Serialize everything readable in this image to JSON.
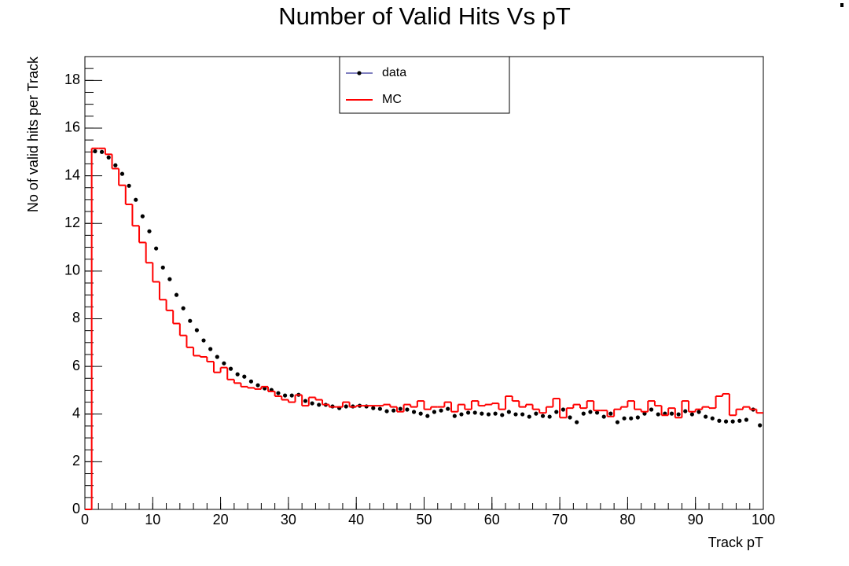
{
  "chart_data": {
    "type": "histogram",
    "title": "Number of Valid Hits Vs pT",
    "x_label": "Track pT",
    "y_label": "No of valid hits per Track",
    "bins": [
      0,
      1,
      2,
      3,
      4,
      5,
      6,
      7,
      8,
      9,
      10,
      11,
      12,
      13,
      14,
      15,
      16,
      17,
      18,
      19,
      20,
      21,
      22,
      23,
      24,
      25,
      26,
      27,
      28,
      29,
      30,
      31,
      32,
      33,
      34,
      35,
      36,
      37,
      38,
      39,
      40,
      41,
      42,
      43,
      44,
      45,
      46,
      47,
      48,
      49,
      50,
      51,
      52,
      53,
      54,
      55,
      56,
      57,
      58,
      59,
      60,
      61,
      62,
      63,
      64,
      65,
      66,
      67,
      68,
      69,
      70,
      71,
      72,
      73,
      74,
      75,
      76,
      77,
      78,
      79,
      80,
      81,
      82,
      83,
      84,
      85,
      86,
      87,
      88,
      89,
      90,
      91,
      92,
      93,
      94,
      95,
      96,
      97,
      98,
      99,
      100
    ],
    "series": [
      {
        "name": "data",
        "style": "points",
        "color": "#000000",
        "values": [
          null,
          15.03,
          15.0,
          14.77,
          14.44,
          14.08,
          13.58,
          12.99,
          12.3,
          11.67,
          10.95,
          10.15,
          9.66,
          9.0,
          8.44,
          7.91,
          7.52,
          7.09,
          6.73,
          6.4,
          6.13,
          5.9,
          5.67,
          5.57,
          5.37,
          5.21,
          5.08,
          5.01,
          4.88,
          4.78,
          4.78,
          4.81,
          4.55,
          4.45,
          4.39,
          4.39,
          4.32,
          4.25,
          4.32,
          4.32,
          4.35,
          4.32,
          4.25,
          4.22,
          4.12,
          4.15,
          4.22,
          4.19,
          4.09,
          4.02,
          3.92,
          4.09,
          4.15,
          4.22,
          3.92,
          3.99,
          4.06,
          4.06,
          4.02,
          3.99,
          4.02,
          3.96,
          4.09,
          3.99,
          3.99,
          3.89,
          4.02,
          3.92,
          3.89,
          4.09,
          4.19,
          3.86,
          3.66,
          4.02,
          4.09,
          4.06,
          3.89,
          4.02,
          3.66,
          3.82,
          3.82,
          3.86,
          4.02,
          4.19,
          3.99,
          4.02,
          4.02,
          3.99,
          4.12,
          3.99,
          4.09,
          3.89,
          3.82,
          3.72,
          3.69,
          3.69,
          3.72,
          3.76,
          4.19,
          3.53
        ]
      },
      {
        "name": "MC",
        "style": "step",
        "color": "#ff0000",
        "values": [
          0,
          15.15,
          15.15,
          14.9,
          14.3,
          13.6,
          12.8,
          11.9,
          11.2,
          10.35,
          9.55,
          8.8,
          8.35,
          7.8,
          7.3,
          6.8,
          6.45,
          6.4,
          6.2,
          5.75,
          5.95,
          5.45,
          5.3,
          5.15,
          5.1,
          5.05,
          5.15,
          4.95,
          4.75,
          4.6,
          4.5,
          4.8,
          4.35,
          4.7,
          4.6,
          4.4,
          4.3,
          4.3,
          4.5,
          4.3,
          4.35,
          4.35,
          4.35,
          4.35,
          4.4,
          4.3,
          4.1,
          4.4,
          4.3,
          4.55,
          4.2,
          4.3,
          4.3,
          4.5,
          4.1,
          4.4,
          4.2,
          4.55,
          4.35,
          4.4,
          4.45,
          4.2,
          4.75,
          4.55,
          4.3,
          4.4,
          4.2,
          4.05,
          4.3,
          4.65,
          3.85,
          4.25,
          4.4,
          4.25,
          4.55,
          4.15,
          4.15,
          3.9,
          4.2,
          4.3,
          4.55,
          4.2,
          4.1,
          4.55,
          4.35,
          3.95,
          4.25,
          3.85,
          4.55,
          4.1,
          4.2,
          4.3,
          4.25,
          4.75,
          4.85,
          3.95,
          4.2,
          4.3,
          4.2,
          4.05
        ]
      }
    ],
    "xlim": [
      0,
      100
    ],
    "xticks": [
      0,
      10,
      20,
      30,
      40,
      50,
      60,
      70,
      80,
      90,
      100
    ],
    "ylim": [
      0,
      19
    ],
    "yticks": [
      0,
      2,
      4,
      6,
      8,
      10,
      12,
      14,
      16,
      18
    ],
    "grid": false,
    "legend": "top-center"
  }
}
